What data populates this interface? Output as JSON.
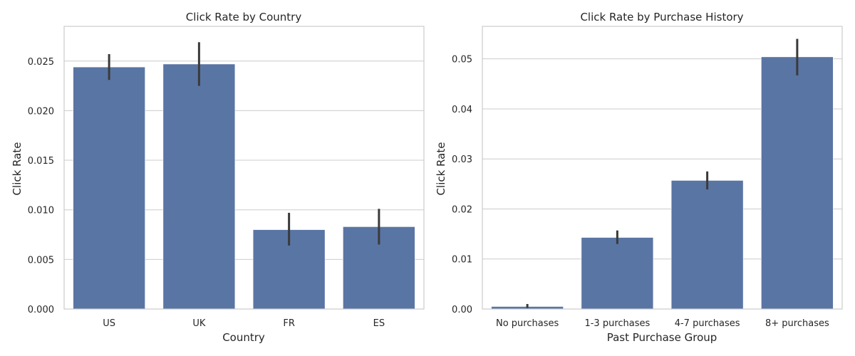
{
  "accent_color": "#5975a4",
  "error_color": "#3a3a3a",
  "chart_data": [
    {
      "type": "bar",
      "title": "Click Rate by Country",
      "xlabel": "Country",
      "ylabel": "Click Rate",
      "categories": [
        "US",
        "UK",
        "FR",
        "ES"
      ],
      "values": [
        0.0244,
        0.0247,
        0.008,
        0.0083
      ],
      "error_low": [
        0.0231,
        0.0225,
        0.0064,
        0.0065
      ],
      "error_high": [
        0.0257,
        0.0269,
        0.0097,
        0.0101
      ],
      "ylim": [
        0,
        0.0285
      ],
      "yticks": [
        0.0,
        0.005,
        0.01,
        0.015,
        0.02,
        0.025
      ],
      "ytick_labels": [
        "0.000",
        "0.005",
        "0.010",
        "0.015",
        "0.020",
        "0.025"
      ],
      "grid": true
    },
    {
      "type": "bar",
      "title": "Click Rate by Purchase History",
      "xlabel": "Past Purchase Group",
      "ylabel": "Click Rate",
      "categories": [
        "No purchases",
        "1-3 purchases",
        "4-7 purchases",
        "8+ purchases"
      ],
      "values": [
        0.0005,
        0.0143,
        0.0257,
        0.0504
      ],
      "error_low": [
        0.0002,
        0.013,
        0.0239,
        0.0467
      ],
      "error_high": [
        0.001,
        0.0157,
        0.0275,
        0.054
      ],
      "ylim": [
        0,
        0.0565
      ],
      "yticks": [
        0.0,
        0.01,
        0.02,
        0.03,
        0.04,
        0.05
      ],
      "ytick_labels": [
        "0.00",
        "0.01",
        "0.02",
        "0.03",
        "0.04",
        "0.05"
      ],
      "grid": true
    }
  ]
}
